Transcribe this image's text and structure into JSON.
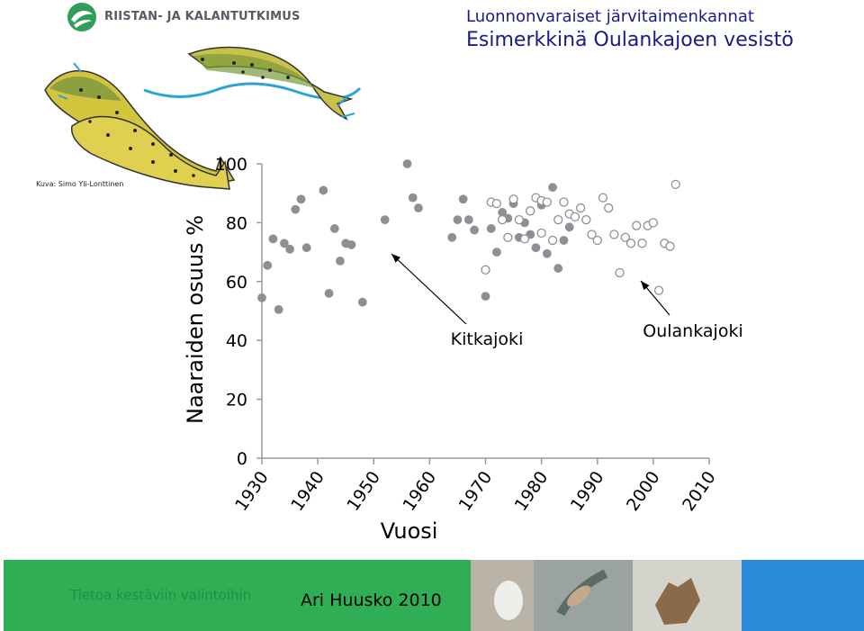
{
  "header": {
    "logo_text": "RIISTAN- JA KALANTUTKIMUS",
    "title_line1": "Luonnonvaraiset järvitaimenkannat",
    "title_line2": "Esimerkkinä Oulankajoen vesistö"
  },
  "photo_credit": "Kuva: Simo Yli-Lonttinen",
  "footer": {
    "tagline": "Tietoa kestäviin valintoihin",
    "author": "Ari Huusko 2010",
    "colors": {
      "green": "#2fae55",
      "blue": "#2b8ad6",
      "tagline": "#1f8f45"
    }
  },
  "chart_data": {
    "type": "scatter",
    "title": "",
    "xlabel": "Vuosi",
    "ylabel": "Naaraiden osuus %",
    "xlim": [
      1930,
      2010
    ],
    "ylim": [
      0,
      100
    ],
    "xticks": [
      "1930",
      "1940",
      "1950",
      "1960",
      "1970",
      "1980",
      "1990",
      "2000",
      "2010"
    ],
    "yticks": [
      "0",
      "20",
      "40",
      "60",
      "80",
      "100"
    ],
    "xtick_values": [
      1930,
      1940,
      1950,
      1960,
      1970,
      1980,
      1990,
      2000,
      2010
    ],
    "ytick_values": [
      0,
      20,
      40,
      60,
      80,
      100
    ],
    "grid": false,
    "annotations": [
      "Kitkajoki",
      "Oulankajoki"
    ],
    "series": [
      {
        "name": "Kitkajoki",
        "marker": "filled",
        "color": "#8e8e96",
        "points": [
          [
            1930,
            54.5
          ],
          [
            1931,
            65.5
          ],
          [
            1932,
            74.5
          ],
          [
            1933,
            50.5
          ],
          [
            1934,
            73.0
          ],
          [
            1935,
            71.0
          ],
          [
            1936,
            84.5
          ],
          [
            1937,
            88.0
          ],
          [
            1938,
            71.5
          ],
          [
            1941,
            91.0
          ],
          [
            1942,
            56.0
          ],
          [
            1943,
            78.0
          ],
          [
            1944,
            67.0
          ],
          [
            1945,
            73.0
          ],
          [
            1946,
            72.5
          ],
          [
            1948,
            53.0
          ],
          [
            1952,
            81.0
          ],
          [
            1956,
            100.0
          ],
          [
            1957,
            88.5
          ],
          [
            1958,
            85.0
          ],
          [
            1964,
            75.0
          ],
          [
            1965,
            81.0
          ],
          [
            1966,
            88.0
          ],
          [
            1967,
            81.0
          ],
          [
            1968,
            77.5
          ],
          [
            1970,
            55.0
          ],
          [
            1971,
            78.0
          ],
          [
            1972,
            70.0
          ],
          [
            1973,
            83.5
          ],
          [
            1974,
            81.5
          ],
          [
            1975,
            86.5
          ],
          [
            1976,
            75.0
          ],
          [
            1977,
            80.0
          ],
          [
            1978,
            76.0
          ],
          [
            1979,
            71.5
          ],
          [
            1980,
            86.0
          ],
          [
            1981,
            69.5
          ],
          [
            1982,
            92.0
          ],
          [
            1983,
            64.5
          ],
          [
            1984,
            74.0
          ],
          [
            1985,
            78.5
          ]
        ]
      },
      {
        "name": "Oulankajoki",
        "marker": "open",
        "color": "#8e8e96",
        "points": [
          [
            1970,
            64.0
          ],
          [
            1971,
            87.0
          ],
          [
            1972,
            86.5
          ],
          [
            1973,
            81.0
          ],
          [
            1974,
            75.0
          ],
          [
            1975,
            88.0
          ],
          [
            1976,
            81.0
          ],
          [
            1977,
            74.5
          ],
          [
            1978,
            84.0
          ],
          [
            1979,
            88.5
          ],
          [
            1980,
            87.5
          ],
          [
            1980,
            76.5
          ],
          [
            1981,
            87.0
          ],
          [
            1982,
            74.0
          ],
          [
            1983,
            81.0
          ],
          [
            1984,
            87.0
          ],
          [
            1985,
            83.0
          ],
          [
            1986,
            82.0
          ],
          [
            1987,
            85.0
          ],
          [
            1988,
            81.0
          ],
          [
            1989,
            76.0
          ],
          [
            1990,
            74.0
          ],
          [
            1991,
            88.5
          ],
          [
            1992,
            85.0
          ],
          [
            1993,
            76.0
          ],
          [
            1994,
            63.0
          ],
          [
            1995,
            75.0
          ],
          [
            1996,
            73.0
          ],
          [
            1997,
            79.0
          ],
          [
            1998,
            73.0
          ],
          [
            1999,
            79.0
          ],
          [
            2000,
            80.0
          ],
          [
            2001,
            57.0
          ],
          [
            2002,
            73.0
          ],
          [
            2003,
            72.0
          ],
          [
            2004,
            93.0
          ]
        ]
      }
    ]
  }
}
